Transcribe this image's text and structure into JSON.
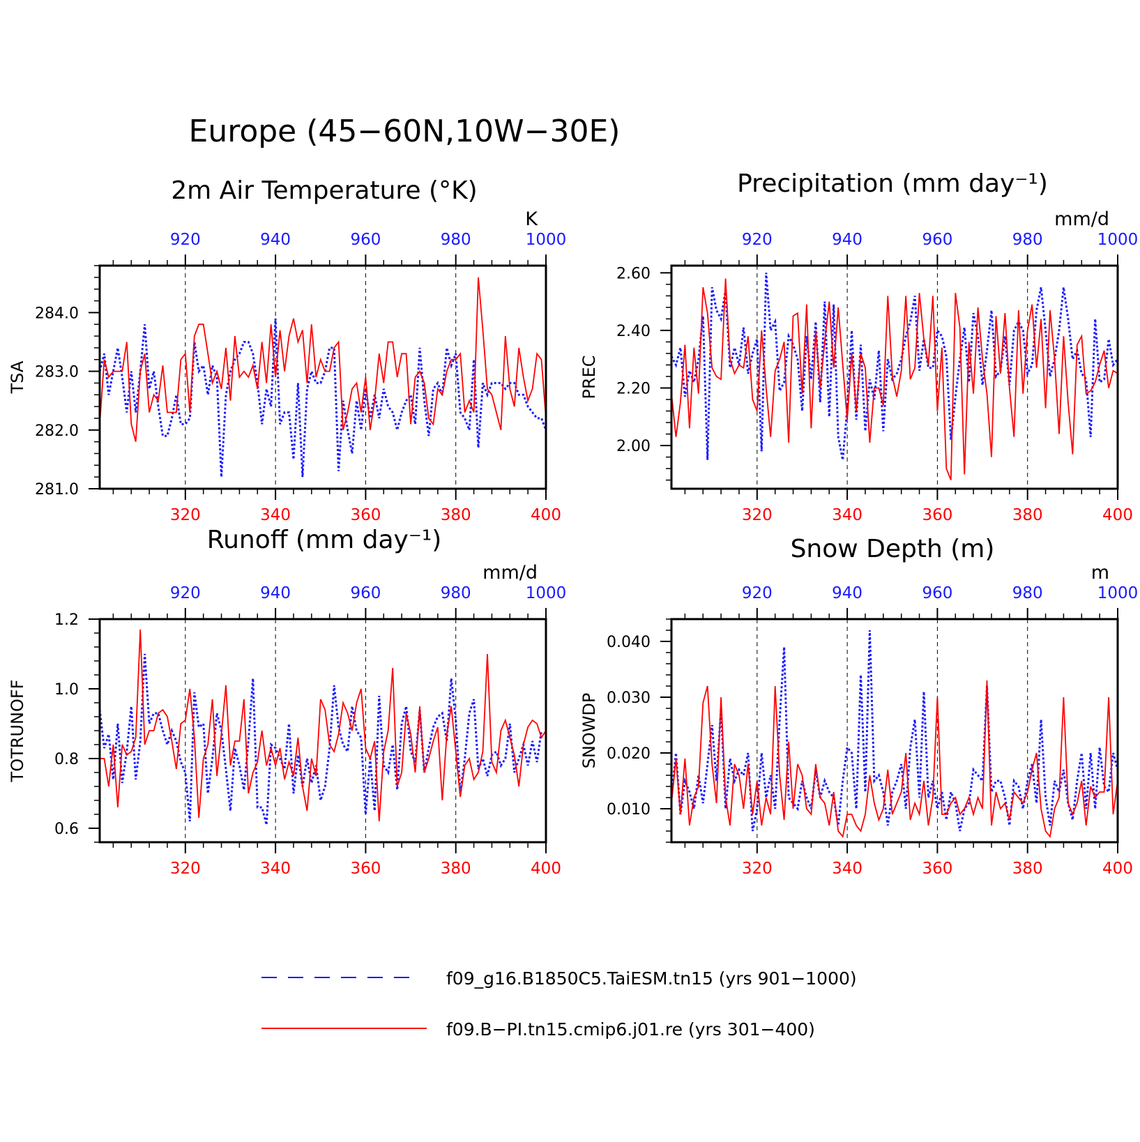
{
  "figure": {
    "title": "Europe (45−60N,10W−30E)"
  },
  "colors": {
    "series_a": "#1a1aff",
    "series_b": "#ff0000",
    "axis": "#000000"
  },
  "legend": {
    "items": [
      {
        "label": "f09_g16.B1850C5.TaiESM.tn15 (yrs 901−1000)",
        "color": "#1a1aff",
        "style": "dashed"
      },
      {
        "label": "f09.B−PI.tn15.cmip6.j01.re (yrs 301−400)",
        "color": "#ff0000",
        "style": "solid"
      }
    ]
  },
  "chart_data": [
    {
      "type": "line",
      "title": "2m Air Temperature (°K)",
      "ylabel": "TSA",
      "units": "K",
      "xlim_bottom": [
        301,
        400
      ],
      "xlim_top": [
        901,
        1000
      ],
      "xticks_bottom": [
        320,
        340,
        360,
        380,
        400
      ],
      "xticks_top": [
        920,
        940,
        960,
        980,
        1000
      ],
      "ylim": [
        281.0,
        284.8
      ],
      "yticks": [
        281.0,
        282.0,
        283.0,
        284.0
      ],
      "ytick_labels": [
        "281.0",
        "282.0",
        "283.0",
        "284.0"
      ],
      "grid": "dashed vertical at ticks",
      "series": [
        {
          "values": [
            283.0,
            283.3,
            282.6,
            283.0,
            283.4,
            282.9,
            282.3,
            283.0,
            282.3,
            283.0,
            283.8,
            282.7,
            283.0,
            282.4,
            281.9,
            281.9,
            282.2,
            282.6,
            282.1,
            282.1,
            282.2,
            283.5,
            283.0,
            283.1,
            282.6,
            283.1,
            282.9,
            281.2,
            282.6,
            283.0,
            283.2,
            283.3,
            283.5,
            283.5,
            283.3,
            282.8,
            282.1,
            282.7,
            282.4,
            283.9,
            282.1,
            282.3,
            282.3,
            281.5,
            282.8,
            281.2,
            282.7,
            283.0,
            282.8,
            282.8,
            283.0,
            283.4,
            283.4,
            281.3,
            282.5,
            282.0,
            281.6,
            282.5,
            282.0,
            282.7,
            282.2,
            282.6,
            282.2,
            282.7,
            282.4,
            282.3,
            282.0,
            282.3,
            282.5,
            282.6,
            282.1,
            283.4,
            282.5,
            281.9,
            282.7,
            282.8,
            282.6,
            283.4,
            283.1,
            283.3,
            282.3,
            282.2,
            282.0,
            283.2,
            281.7,
            282.8,
            282.6,
            282.8,
            282.8,
            282.8,
            282.7,
            282.8,
            282.8,
            282.6,
            282.6,
            282.4,
            282.3,
            282.2,
            282.2,
            282.0
          ]
        },
        {
          "values": [
            282.1,
            283.2,
            282.9,
            283.0,
            283.0,
            283.0,
            283.5,
            282.1,
            281.8,
            283.0,
            283.3,
            282.3,
            282.6,
            282.5,
            283.1,
            282.3,
            282.3,
            282.3,
            283.2,
            283.3,
            282.3,
            283.6,
            283.8,
            283.8,
            283.3,
            282.8,
            283.0,
            282.7,
            283.4,
            282.5,
            283.6,
            282.9,
            283.0,
            282.9,
            283.1,
            282.7,
            283.5,
            282.8,
            283.8,
            282.9,
            283.7,
            283.0,
            283.6,
            283.9,
            283.5,
            283.7,
            282.8,
            283.8,
            282.9,
            283.2,
            283.0,
            283.0,
            283.4,
            283.5,
            282.0,
            282.3,
            282.7,
            282.8,
            282.3,
            282.9,
            282.0,
            282.5,
            283.3,
            282.8,
            283.5,
            283.5,
            282.9,
            283.3,
            283.3,
            282.1,
            282.9,
            283.0,
            282.8,
            282.2,
            282.1,
            282.7,
            282.6,
            283.0,
            283.2,
            283.2,
            283.3,
            282.3,
            282.5,
            282.3,
            284.6,
            283.7,
            282.7,
            282.6,
            282.3,
            282.0,
            283.6,
            282.7,
            282.4,
            283.4,
            282.9,
            282.5,
            282.7,
            283.3,
            283.2,
            282.2
          ]
        }
      ]
    },
    {
      "type": "line",
      "title": "Precipitation (mm day⁻¹)",
      "ylabel": "PREC",
      "units": "mm/d",
      "xlim_bottom": [
        301,
        400
      ],
      "xlim_top": [
        901,
        1000
      ],
      "xticks_bottom": [
        320,
        340,
        360,
        380,
        400
      ],
      "xticks_top": [
        920,
        940,
        960,
        980,
        1000
      ],
      "ylim": [
        1.85,
        2.625
      ],
      "yticks": [
        2.0,
        2.2,
        2.4,
        2.6
      ],
      "ytick_labels": [
        "2.00",
        "2.20",
        "2.40",
        "2.60"
      ],
      "grid": "dashed vertical at ticks",
      "series": [
        {
          "values": [
            2.31,
            2.28,
            2.34,
            2.17,
            2.26,
            2.22,
            2.3,
            2.45,
            1.95,
            2.55,
            2.47,
            2.44,
            2.54,
            2.27,
            2.34,
            2.28,
            2.41,
            2.25,
            2.32,
            2.37,
            1.98,
            2.6,
            2.4,
            2.43,
            2.19,
            2.22,
            2.38,
            2.35,
            2.3,
            2.12,
            2.38,
            2.23,
            2.43,
            2.15,
            2.5,
            2.1,
            2.49,
            2.03,
            1.95,
            2.13,
            2.4,
            2.09,
            2.35,
            2.05,
            2.23,
            2.16,
            2.33,
            2.05,
            2.3,
            2.23,
            2.25,
            2.3,
            2.38,
            2.43,
            2.52,
            2.26,
            2.37,
            2.27,
            2.27,
            2.4,
            2.38,
            2.31,
            2.02,
            2.17,
            2.3,
            2.41,
            2.22,
            2.46,
            2.38,
            2.21,
            2.33,
            2.47,
            2.24,
            2.26,
            2.38,
            2.21,
            2.4,
            2.43,
            2.4,
            2.25,
            2.28,
            2.47,
            2.55,
            2.4,
            2.24,
            2.3,
            2.4,
            2.55,
            2.44,
            2.3,
            2.33,
            2.25,
            2.23,
            2.03,
            2.44,
            2.22,
            2.23,
            2.37,
            2.28,
            2.3
          ]
        },
        {
          "values": [
            2.18,
            2.03,
            2.15,
            2.35,
            2.06,
            2.34,
            2.18,
            2.55,
            2.46,
            2.27,
            2.24,
            2.23,
            2.58,
            2.3,
            2.25,
            2.28,
            2.27,
            2.38,
            2.16,
            2.12,
            2.4,
            2.2,
            2.03,
            2.26,
            2.3,
            2.36,
            2.01,
            2.45,
            2.46,
            2.18,
            2.49,
            2.06,
            2.4,
            2.2,
            2.36,
            2.5,
            2.27,
            2.48,
            2.28,
            2.09,
            2.32,
            2.12,
            2.32,
            2.27,
            2.01,
            2.2,
            2.2,
            2.14,
            2.52,
            2.24,
            2.17,
            2.26,
            2.52,
            2.23,
            2.27,
            2.53,
            2.37,
            2.28,
            2.52,
            2.12,
            2.34,
            1.92,
            1.88,
            2.53,
            2.41,
            1.9,
            2.36,
            2.18,
            2.48,
            2.3,
            2.18,
            1.96,
            2.45,
            2.25,
            2.46,
            2.2,
            2.03,
            2.47,
            2.18,
            2.4,
            2.49,
            2.27,
            2.44,
            2.13,
            2.47,
            2.3,
            2.04,
            2.38,
            2.15,
            1.97,
            2.35,
            2.38,
            2.18,
            2.19,
            2.22,
            2.28,
            2.33,
            2.2,
            2.26,
            2.25
          ]
        }
      ]
    },
    {
      "type": "line",
      "title": "Runoff (mm day⁻¹)",
      "ylabel": "TOTRUNOFF",
      "units": "mm/d",
      "xlim_bottom": [
        301,
        400
      ],
      "xlim_top": [
        901,
        1000
      ],
      "xticks_bottom": [
        320,
        340,
        360,
        380,
        400
      ],
      "xticks_top": [
        920,
        940,
        960,
        980,
        1000
      ],
      "ylim": [
        0.56,
        1.2
      ],
      "yticks": [
        0.6,
        0.8,
        1.0,
        1.2
      ],
      "ytick_labels": [
        "0.6",
        "0.8",
        "1.0",
        "1.2"
      ],
      "grid": "dashed vertical at ticks",
      "series": [
        {
          "values": [
            0.94,
            0.83,
            0.87,
            0.74,
            0.9,
            0.73,
            0.82,
            0.95,
            0.74,
            0.85,
            1.1,
            0.9,
            0.93,
            0.93,
            0.88,
            0.84,
            0.88,
            0.85,
            0.79,
            0.76,
            0.62,
            0.99,
            0.89,
            0.9,
            0.7,
            0.8,
            0.93,
            0.88,
            0.77,
            0.65,
            0.83,
            0.78,
            0.71,
            0.85,
            1.03,
            0.66,
            0.66,
            0.61,
            0.84,
            0.83,
            0.8,
            0.77,
            0.9,
            0.7,
            0.81,
            0.72,
            0.8,
            0.73,
            0.78,
            0.68,
            0.72,
            0.83,
            1.01,
            0.89,
            0.84,
            0.82,
            0.95,
            0.88,
            0.86,
            0.64,
            0.8,
            0.65,
            0.98,
            0.78,
            0.76,
            0.84,
            0.71,
            0.9,
            0.95,
            0.82,
            0.79,
            0.94,
            0.76,
            0.83,
            0.89,
            0.92,
            0.93,
            0.85,
            1.03,
            0.91,
            0.7,
            0.8,
            0.93,
            0.97,
            0.77,
            0.8,
            0.75,
            0.81,
            0.82,
            0.78,
            0.8,
            0.9,
            0.76,
            0.8,
            0.84,
            0.78,
            0.85,
            0.79,
            0.88
          ]
        },
        {
          "values": [
            0.8,
            0.8,
            0.72,
            0.84,
            0.66,
            0.84,
            0.81,
            0.82,
            0.86,
            1.17,
            0.84,
            0.88,
            0.88,
            0.93,
            0.94,
            0.92,
            0.85,
            0.77,
            0.9,
            0.91,
            1.0,
            0.86,
            0.63,
            0.8,
            0.84,
            0.97,
            0.75,
            0.87,
            1.01,
            0.78,
            0.85,
            0.85,
            0.97,
            0.7,
            0.76,
            0.79,
            0.88,
            0.78,
            0.83,
            0.78,
            0.83,
            0.74,
            0.79,
            0.75,
            0.86,
            0.72,
            0.65,
            0.8,
            0.75,
            0.97,
            0.94,
            0.84,
            0.82,
            0.87,
            0.96,
            0.93,
            0.88,
            0.96,
            1.0,
            0.83,
            0.8,
            0.85,
            0.62,
            0.82,
            0.88,
            1.06,
            0.72,
            0.76,
            0.93,
            0.87,
            0.76,
            0.95,
            0.76,
            0.8,
            0.85,
            0.89,
            0.68,
            0.87,
            0.95,
            0.82,
            0.69,
            0.78,
            0.8,
            0.74,
            0.76,
            0.82,
            1.1,
            0.79,
            0.76,
            0.88,
            0.91,
            0.86,
            0.81,
            0.72,
            0.84,
            0.89,
            0.91,
            0.9,
            0.86,
            0.88
          ]
        }
      ]
    },
    {
      "type": "line",
      "title": "Snow Depth (m)",
      "ylabel": "SNOWDP",
      "units": "m",
      "xlim_bottom": [
        301,
        400
      ],
      "xlim_top": [
        901,
        1000
      ],
      "xticks_bottom": [
        320,
        340,
        360,
        380,
        400
      ],
      "xticks_top": [
        920,
        940,
        960,
        980,
        1000
      ],
      "ylim": [
        0.004,
        0.044
      ],
      "yticks": [
        0.01,
        0.02,
        0.03,
        0.04
      ],
      "ytick_labels": [
        "0.010",
        "0.020",
        "0.030",
        "0.040"
      ],
      "grid": "dashed vertical at ticks",
      "series": [
        {
          "values": [
            0.012,
            0.02,
            0.009,
            0.015,
            0.013,
            0.01,
            0.016,
            0.011,
            0.018,
            0.025,
            0.015,
            0.028,
            0.01,
            0.019,
            0.015,
            0.017,
            0.016,
            0.02,
            0.006,
            0.01,
            0.02,
            0.012,
            0.016,
            0.01,
            0.026,
            0.039,
            0.012,
            0.011,
            0.01,
            0.015,
            0.012,
            0.01,
            0.017,
            0.012,
            0.015,
            0.013,
            0.012,
            0.007,
            0.015,
            0.021,
            0.02,
            0.01,
            0.034,
            0.013,
            0.042,
            0.015,
            0.016,
            0.013,
            0.007,
            0.013,
            0.015,
            0.018,
            0.01,
            0.021,
            0.026,
            0.012,
            0.031,
            0.012,
            0.015,
            0.01,
            0.013,
            0.008,
            0.013,
            0.011,
            0.006,
            0.01,
            0.011,
            0.017,
            0.016,
            0.015,
            0.032,
            0.013,
            0.015,
            0.015,
            0.012,
            0.007,
            0.015,
            0.014,
            0.01,
            0.015,
            0.018,
            0.011,
            0.026,
            0.012,
            0.007,
            0.015,
            0.013,
            0.017,
            0.011,
            0.008,
            0.015,
            0.02,
            0.01,
            0.02,
            0.01,
            0.021,
            0.014,
            0.013,
            0.02,
            0.017
          ]
        },
        {
          "values": [
            0.011,
            0.019,
            0.009,
            0.019,
            0.007,
            0.012,
            0.014,
            0.029,
            0.032,
            0.018,
            0.011,
            0.03,
            0.012,
            0.007,
            0.018,
            0.016,
            0.01,
            0.018,
            0.009,
            0.015,
            0.007,
            0.012,
            0.009,
            0.032,
            0.016,
            0.008,
            0.022,
            0.01,
            0.018,
            0.016,
            0.01,
            0.009,
            0.018,
            0.012,
            0.011,
            0.007,
            0.013,
            0.006,
            0.005,
            0.009,
            0.009,
            0.007,
            0.006,
            0.009,
            0.016,
            0.011,
            0.008,
            0.01,
            0.017,
            0.009,
            0.011,
            0.013,
            0.02,
            0.008,
            0.011,
            0.009,
            0.015,
            0.007,
            0.012,
            0.03,
            0.009,
            0.009,
            0.011,
            0.012,
            0.009,
            0.01,
            0.012,
            0.009,
            0.012,
            0.01,
            0.033,
            0.007,
            0.013,
            0.01,
            0.011,
            0.008,
            0.013,
            0.012,
            0.011,
            0.013,
            0.017,
            0.02,
            0.01,
            0.006,
            0.005,
            0.01,
            0.012,
            0.03,
            0.011,
            0.009,
            0.011,
            0.015,
            0.007,
            0.014,
            0.012,
            0.013,
            0.013,
            0.03,
            0.009,
            0.015
          ]
        }
      ]
    }
  ]
}
